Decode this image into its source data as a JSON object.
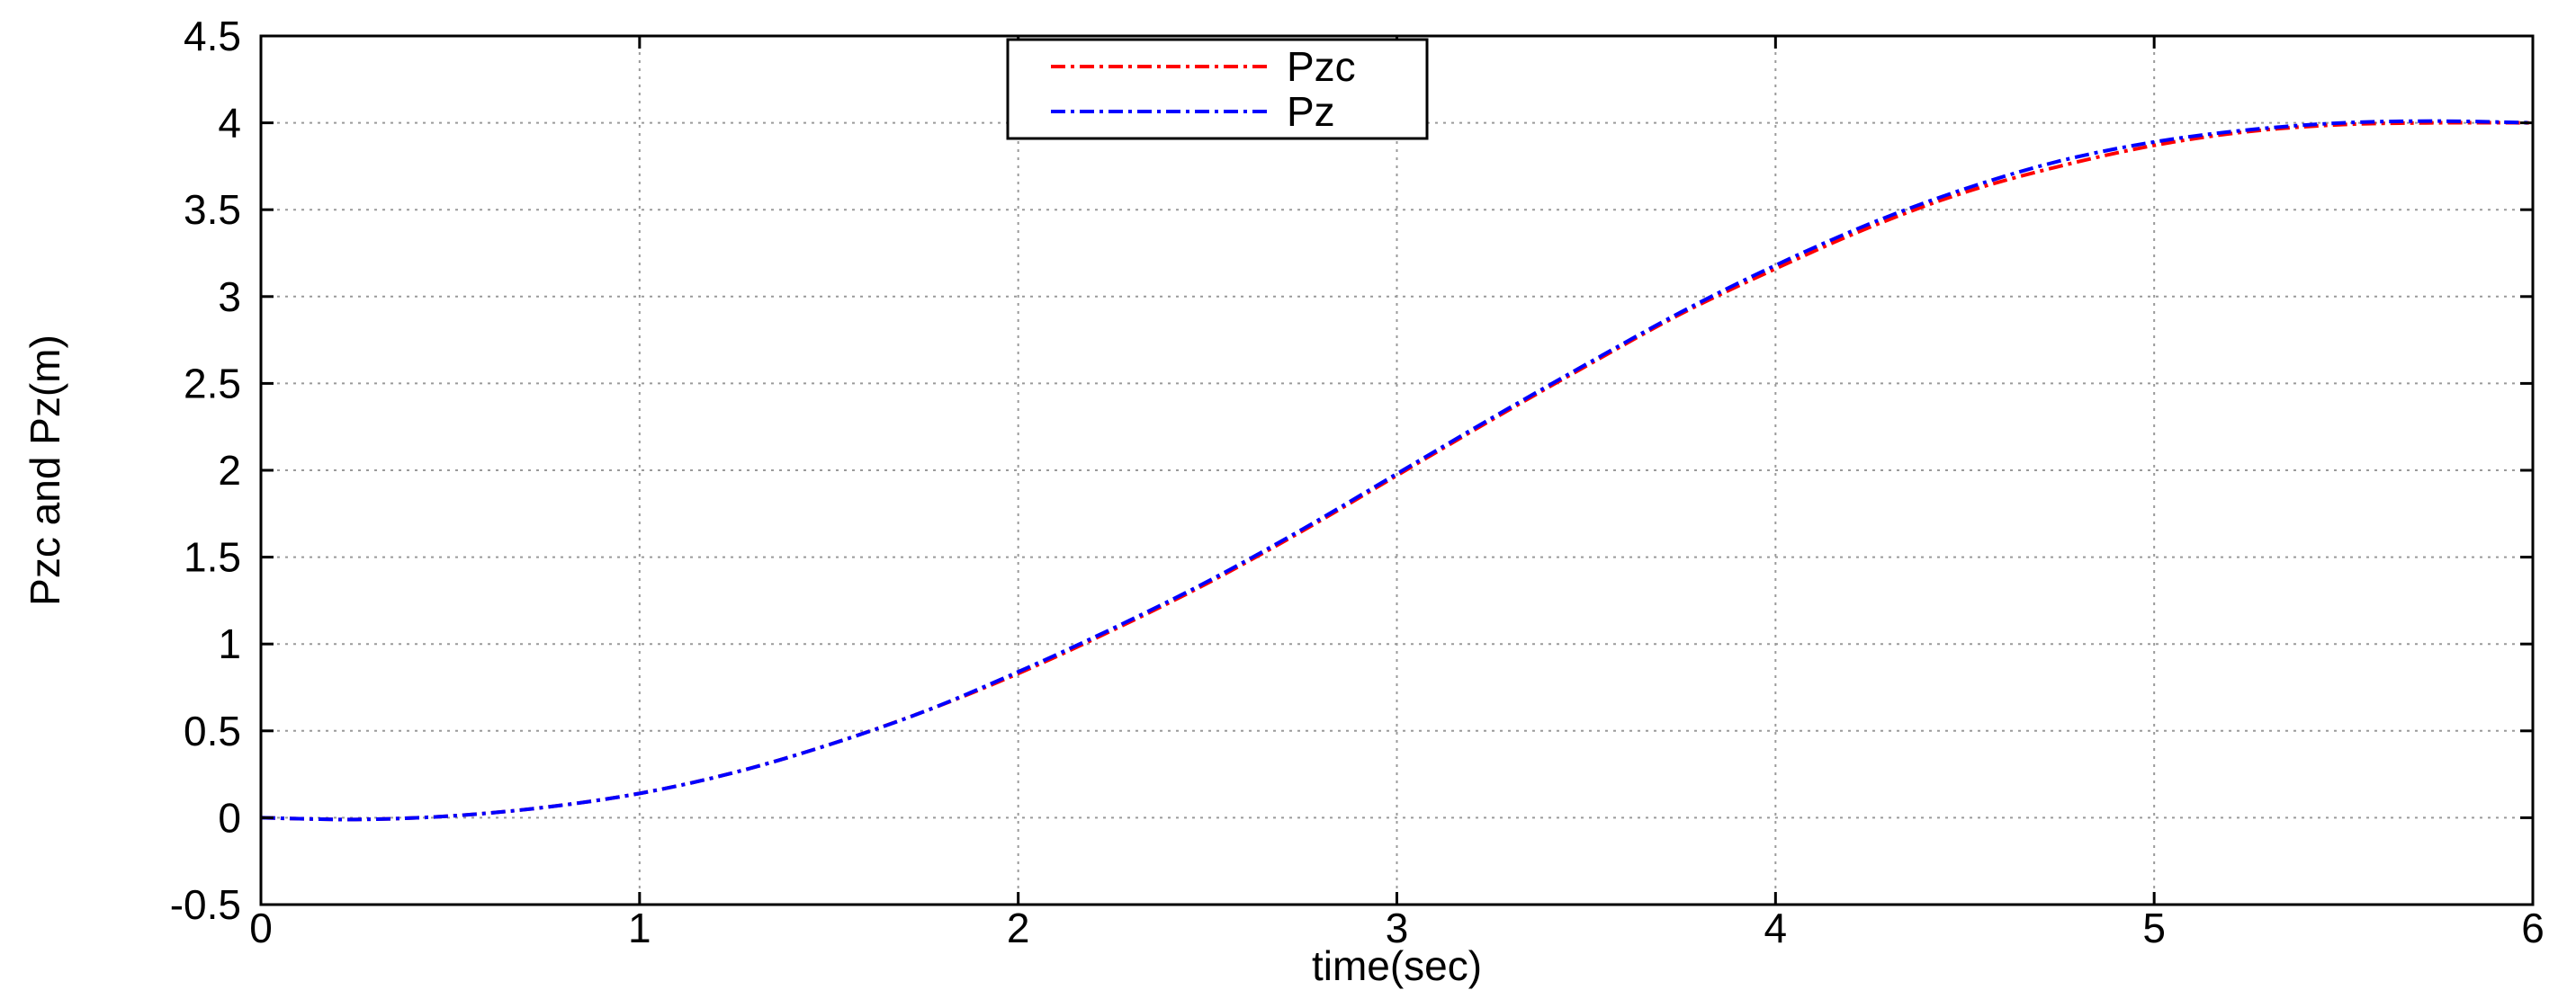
{
  "chart_data": {
    "type": "line",
    "title": "",
    "xlabel": "time(sec)",
    "ylabel": "Pzc and Pz(m)",
    "xlim": [
      0,
      6
    ],
    "ylim": [
      -0.5,
      4.5
    ],
    "xticks": [
      0,
      1,
      2,
      3,
      4,
      5,
      6
    ],
    "yticks": [
      -0.5,
      0,
      0.5,
      1,
      1.5,
      2,
      2.5,
      3,
      3.5,
      4,
      4.5
    ],
    "xtick_labels": [
      "0",
      "1",
      "2",
      "3",
      "4",
      "5",
      "6"
    ],
    "ytick_labels": [
      "-0.5",
      "0",
      "0.5",
      "1",
      "1.5",
      "2",
      "2.5",
      "3",
      "3.5",
      "4",
      "4.5"
    ],
    "grid": true,
    "legend_position": "top-center",
    "series": [
      {
        "name": "Pzc",
        "color": "#ff0000",
        "style": "dash-dot",
        "x": [
          0,
          0.25,
          0.5,
          0.75,
          1,
          1.25,
          1.5,
          1.75,
          2,
          2.25,
          2.5,
          2.75,
          3,
          3.25,
          3.5,
          3.75,
          4,
          4.25,
          4.5,
          4.75,
          5,
          5.25,
          5.5,
          5.75,
          6
        ],
        "y": [
          0,
          -0.01,
          0.01,
          0.06,
          0.14,
          0.26,
          0.42,
          0.61,
          0.83,
          1.08,
          1.35,
          1.65,
          1.97,
          2.29,
          2.6,
          2.9,
          3.16,
          3.4,
          3.6,
          3.75,
          3.87,
          3.95,
          3.99,
          4.0,
          4.0
        ]
      },
      {
        "name": "Pz",
        "color": "#0000ff",
        "style": "dash-dot",
        "x": [
          0,
          0.25,
          0.5,
          0.75,
          1,
          1.25,
          1.5,
          1.75,
          2,
          2.25,
          2.5,
          2.75,
          3,
          3.25,
          3.5,
          3.75,
          4,
          4.25,
          4.5,
          4.75,
          5,
          5.25,
          5.5,
          5.75,
          6
        ],
        "y": [
          0,
          -0.01,
          0.01,
          0.06,
          0.14,
          0.26,
          0.42,
          0.61,
          0.84,
          1.09,
          1.36,
          1.66,
          1.98,
          2.3,
          2.61,
          2.91,
          3.18,
          3.42,
          3.62,
          3.78,
          3.89,
          3.96,
          4.0,
          4.01,
          4.0
        ]
      }
    ]
  }
}
